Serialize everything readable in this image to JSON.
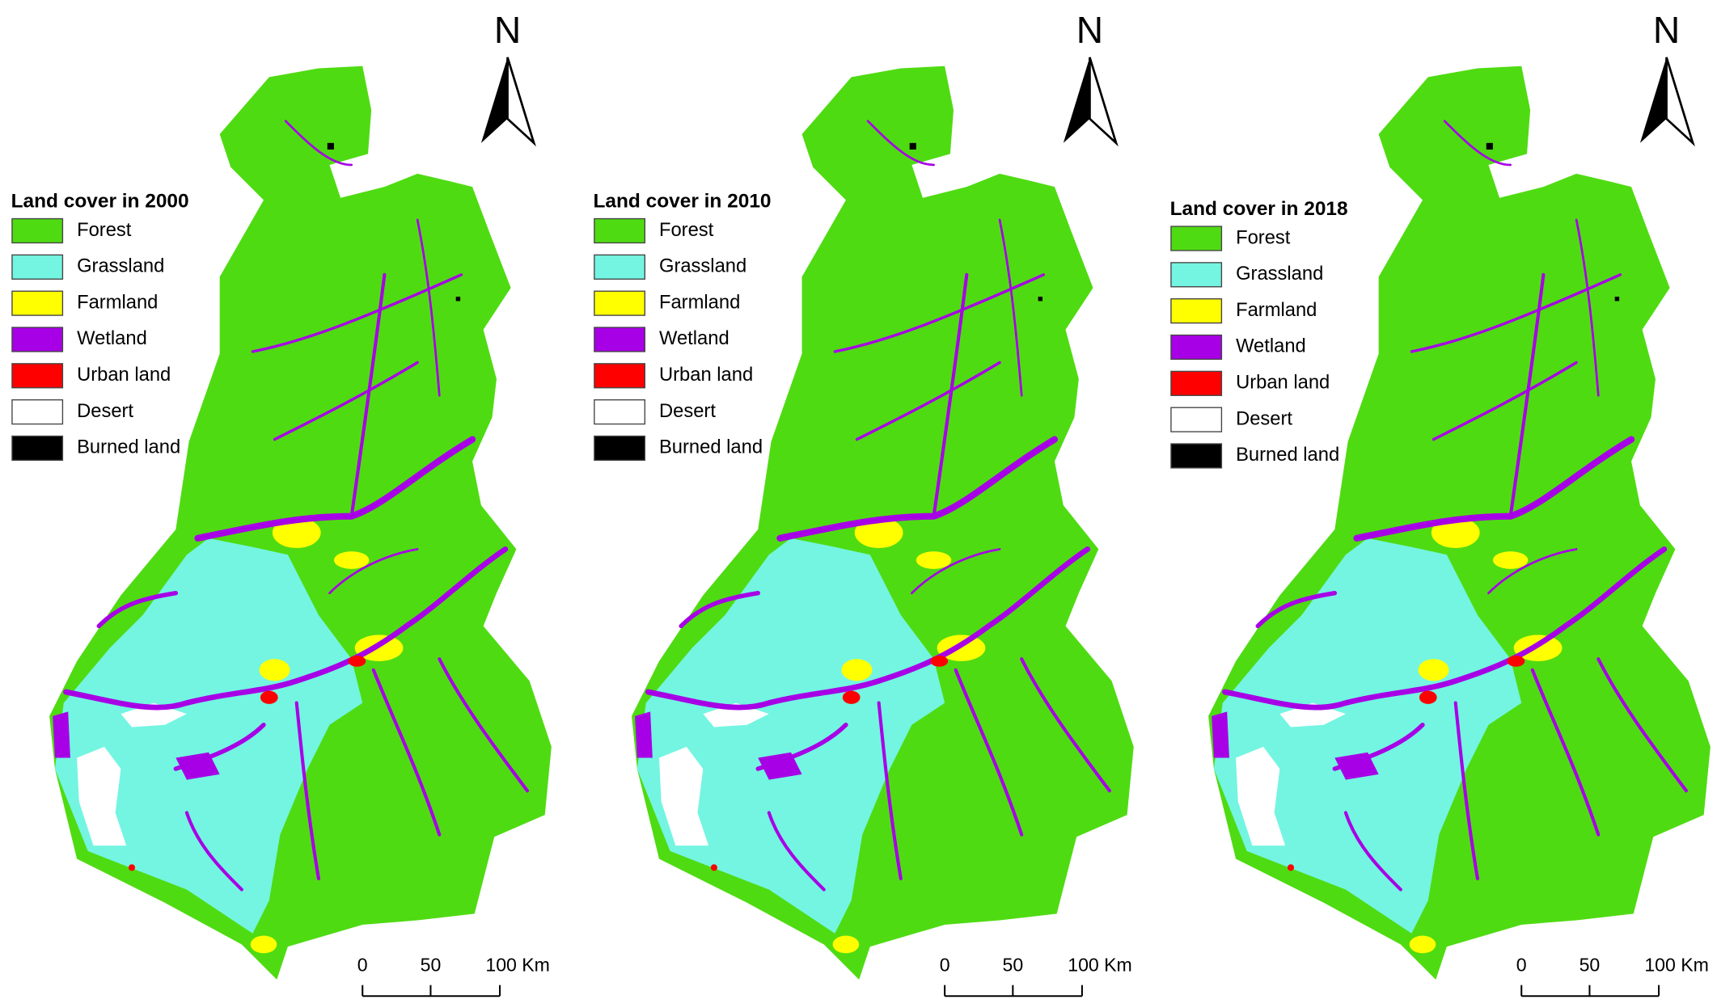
{
  "maps": [
    {
      "legend_title": "Land cover in 2000",
      "north": "N",
      "scale_labels": [
        "0",
        "50",
        "100 Km"
      ],
      "items": [
        {
          "label": "Forest",
          "color": "#4fdb12"
        },
        {
          "label": "Grassland",
          "color": "#73f5e1"
        },
        {
          "label": "Farmland",
          "color": "#ffff00"
        },
        {
          "label": "Wetland",
          "color": "#a800e6"
        },
        {
          "label": "Urban land",
          "color": "#ff0000"
        },
        {
          "label": "Desert",
          "color": "#ffffff"
        },
        {
          "label": "Burned land",
          "color": "#000000"
        }
      ]
    },
    {
      "legend_title": "Land cover in 2010",
      "north": "N",
      "scale_labels": [
        "0",
        "50",
        "100 Km"
      ],
      "items": [
        {
          "label": "Forest",
          "color": "#4fdb12"
        },
        {
          "label": "Grassland",
          "color": "#73f5e1"
        },
        {
          "label": "Farmland",
          "color": "#ffff00"
        },
        {
          "label": "Wetland",
          "color": "#a800e6"
        },
        {
          "label": "Urban land",
          "color": "#ff0000"
        },
        {
          "label": "Desert",
          "color": "#ffffff"
        },
        {
          "label": "Burned land",
          "color": "#000000"
        }
      ]
    },
    {
      "legend_title": "Land cover in 2018",
      "north": "N",
      "scale_labels": [
        "0",
        "50",
        "100 Km"
      ],
      "items": [
        {
          "label": "Forest",
          "color": "#4fdb12"
        },
        {
          "label": "Grassland",
          "color": "#73f5e1"
        },
        {
          "label": "Farmland",
          "color": "#ffff00"
        },
        {
          "label": "Wetland",
          "color": "#a800e6"
        },
        {
          "label": "Urban land",
          "color": "#ff0000"
        },
        {
          "label": "Desert",
          "color": "#ffffff"
        },
        {
          "label": "Burned land",
          "color": "#000000"
        }
      ]
    }
  ]
}
